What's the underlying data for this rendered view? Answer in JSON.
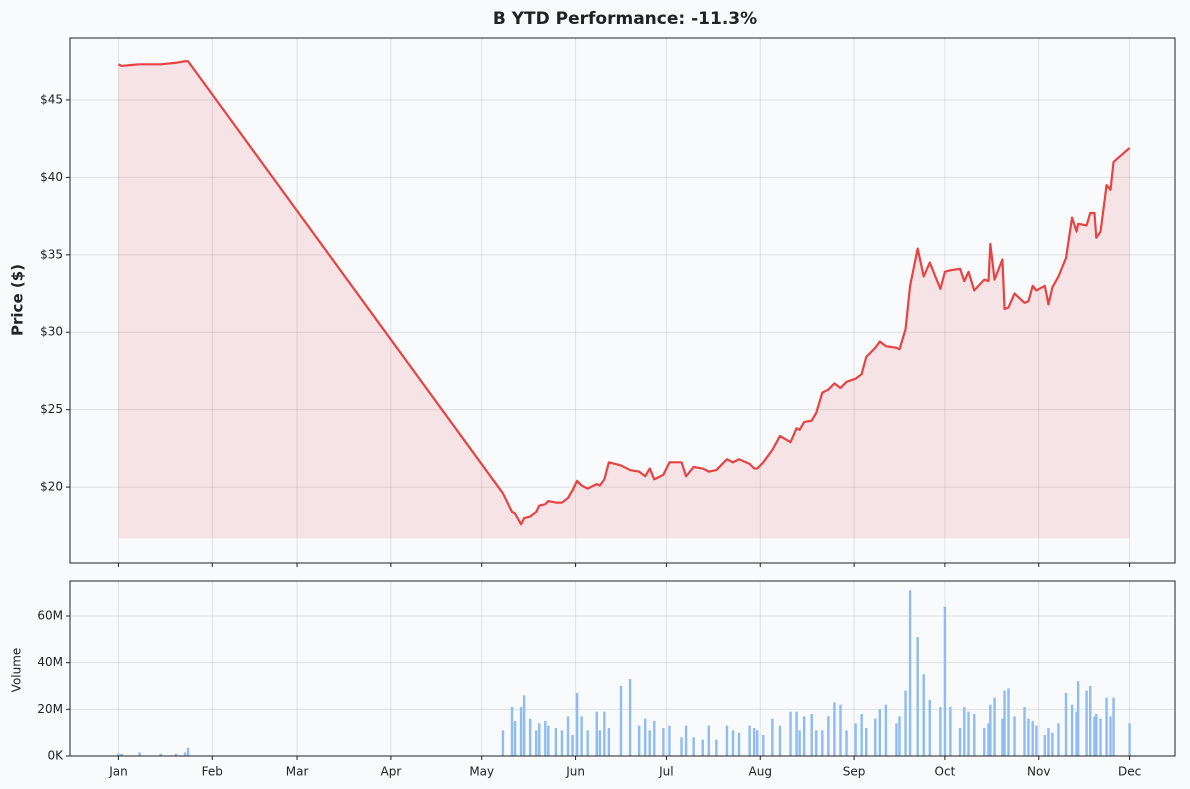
{
  "chart_data": [
    {
      "type": "line",
      "title": "B YTD Performance: -11.3%",
      "y_label": "Price ($)",
      "x": [
        0,
        1,
        7,
        14,
        19,
        22,
        23,
        127,
        130,
        131,
        133,
        134,
        136,
        138,
        139,
        141,
        142,
        144.5,
        146.5,
        148.5,
        150,
        151.5,
        153,
        155,
        158,
        159,
        160.5,
        162,
        166,
        169,
        172,
        174,
        175.5,
        177,
        180,
        182,
        186,
        187.5,
        190,
        193,
        195,
        197.5,
        201,
        203,
        205,
        208.5,
        210,
        211,
        213,
        216,
        218.5,
        222,
        224,
        225,
        226.5,
        229,
        230.5,
        232.5,
        234.5,
        236.5,
        238.5,
        240.5,
        243.5,
        245.5,
        247,
        250,
        251.5,
        253.5,
        257,
        258,
        260,
        261.5,
        264,
        266,
        268,
        271.5,
        273,
        274.8,
        278,
        279.4,
        280.8,
        282.7,
        286,
        287.4,
        288,
        289.4,
        292,
        292.7,
        294,
        296,
        299.3,
        300.6,
        302,
        303.2,
        306,
        307.2,
        308.5,
        310.5,
        313,
        315,
        316.5,
        317,
        319.8,
        321,
        322.4,
        323,
        324.4,
        326.4,
        327.7,
        328.7,
        334
      ],
      "series": [
        {
          "name": "Price",
          "color": "#e84343",
          "values": [
            47.3,
            47.2,
            47.3,
            47.3,
            47.4,
            47.5,
            47.5,
            19.6,
            18.4,
            18.3,
            17.6,
            18.0,
            18.1,
            18.4,
            18.8,
            18.9,
            19.1,
            19.0,
            19.0,
            19.3,
            19.8,
            20.4,
            20.1,
            19.9,
            20.2,
            20.1,
            20.5,
            21.6,
            21.4,
            21.1,
            21.0,
            20.7,
            21.2,
            20.5,
            20.8,
            21.6,
            21.6,
            20.7,
            21.3,
            21.2,
            21.0,
            21.1,
            21.8,
            21.6,
            21.8,
            21.5,
            21.2,
            21.2,
            21.6,
            22.4,
            23.3,
            22.9,
            23.8,
            23.7,
            24.2,
            24.3,
            24.8,
            26.1,
            26.3,
            26.7,
            26.4,
            26.8,
            27.0,
            27.3,
            28.4,
            29.0,
            29.4,
            29.1,
            29.0,
            28.9,
            30.2,
            33.0,
            35.4,
            33.6,
            34.5,
            32.8,
            33.9,
            34.0,
            34.1,
            33.3,
            33.9,
            32.7,
            33.4,
            33.3,
            35.7,
            33.4,
            34.7,
            31.5,
            31.6,
            32.5,
            31.9,
            32.0,
            33.0,
            32.7,
            33.0,
            31.8,
            32.9,
            33.6,
            34.8,
            37.4,
            36.5,
            37.0,
            36.9,
            37.7,
            37.7,
            36.1,
            36.5,
            39.5,
            39.2,
            41.0,
            41.9
          ]
        }
      ],
      "xlim": [
        -16,
        349
      ],
      "xticks": [
        {
          "value": 0,
          "label": "Jan"
        },
        {
          "value": 31,
          "label": "Feb"
        },
        {
          "value": 59,
          "label": "Mar"
        },
        {
          "value": 90,
          "label": "Apr"
        },
        {
          "value": 120,
          "label": "May"
        },
        {
          "value": 151,
          "label": "Jun"
        },
        {
          "value": 181,
          "label": "Jul"
        },
        {
          "value": 212,
          "label": "Aug"
        },
        {
          "value": 243,
          "label": "Sep"
        },
        {
          "value": 273,
          "label": "Oct"
        },
        {
          "value": 304,
          "label": "Nov"
        },
        {
          "value": 334,
          "label": "Dec"
        }
      ],
      "ylim": [
        15.1,
        49.0
      ],
      "yticks": [
        {
          "value": 20,
          "label": "$20"
        },
        {
          "value": 25,
          "label": "$25"
        },
        {
          "value": 30,
          "label": "$30"
        },
        {
          "value": 35,
          "label": "$35"
        },
        {
          "value": 40,
          "label": "$40"
        },
        {
          "value": 45,
          "label": "$45"
        }
      ],
      "grid": true
    },
    {
      "type": "bar",
      "y_label": "Volume",
      "x": [
        0,
        1,
        7,
        14,
        19,
        22,
        23,
        127,
        130,
        131,
        133,
        134,
        136,
        138,
        139,
        141,
        142,
        144.5,
        146.5,
        148.5,
        150,
        151.5,
        153,
        155,
        158,
        159,
        160.5,
        162,
        166,
        169,
        172,
        174,
        175.5,
        177,
        180,
        182,
        186,
        187.5,
        190,
        193,
        195,
        197.5,
        201,
        203,
        205,
        208.5,
        210,
        211,
        213,
        216,
        218.5,
        222,
        224,
        225,
        226.5,
        229,
        230.5,
        232.5,
        234.5,
        236.5,
        238.5,
        240.5,
        243.5,
        245.5,
        247,
        250,
        251.5,
        253.5,
        257,
        258,
        260,
        261.5,
        264,
        266,
        268,
        271.5,
        273,
        274.8,
        278,
        279.4,
        280.8,
        282.7,
        286,
        287.4,
        288,
        289.4,
        292,
        292.7,
        294,
        296,
        299.3,
        300.6,
        302,
        303.2,
        306,
        307.2,
        308.5,
        310.5,
        313,
        315,
        316.5,
        317,
        319.8,
        321,
        322.4,
        323,
        324.4,
        326.4,
        327.7,
        328.7,
        334
      ],
      "series": [
        {
          "name": "Volume",
          "color": "#8fbcf3",
          "values": [
            1000000,
            1000000,
            1500000,
            1000000,
            1000000,
            1500000,
            3500000,
            11000000,
            21000000,
            15000000,
            21000000,
            26000000,
            16000000,
            11000000,
            14000000,
            15000000,
            13000000,
            12000000,
            11000000,
            17000000,
            9000000,
            27000000,
            17000000,
            11000000,
            19000000,
            11000000,
            19000000,
            12000000,
            30000000,
            33000000,
            13000000,
            16000000,
            11000000,
            15000000,
            12000000,
            13000000,
            8000000,
            13000000,
            8000000,
            7000000,
            13000000,
            7000000,
            13000000,
            11000000,
            10000000,
            13000000,
            12000000,
            11000000,
            9000000,
            16000000,
            13000000,
            19000000,
            19000000,
            11000000,
            17000000,
            18000000,
            11000000,
            11000000,
            17000000,
            23000000,
            22000000,
            11000000,
            14000000,
            18000000,
            12000000,
            16000000,
            20000000,
            22000000,
            14000000,
            17000000,
            28000000,
            71000000,
            51000000,
            35000000,
            24000000,
            21000000,
            64000000,
            21000000,
            12000000,
            21000000,
            19000000,
            18000000,
            12000000,
            14000000,
            22000000,
            25000000,
            16000000,
            28000000,
            29000000,
            17000000,
            21000000,
            16000000,
            15000000,
            13000000,
            9000000,
            12000000,
            10000000,
            14000000,
            27000000,
            22000000,
            19000000,
            32000000,
            28000000,
            30000000,
            17000000,
            18000000,
            16000000,
            25000000,
            17000000,
            25000000,
            14000000
          ]
        }
      ],
      "xlim": [
        -16,
        349
      ],
      "xticks": [
        {
          "value": 0,
          "label": "Jan"
        },
        {
          "value": 31,
          "label": "Feb"
        },
        {
          "value": 59,
          "label": "Mar"
        },
        {
          "value": 90,
          "label": "Apr"
        },
        {
          "value": 120,
          "label": "May"
        },
        {
          "value": 151,
          "label": "Jun"
        },
        {
          "value": 181,
          "label": "Jul"
        },
        {
          "value": 212,
          "label": "Aug"
        },
        {
          "value": 243,
          "label": "Sep"
        },
        {
          "value": 273,
          "label": "Oct"
        },
        {
          "value": 304,
          "label": "Nov"
        },
        {
          "value": 334,
          "label": "Dec"
        }
      ],
      "ylim": [
        0,
        75000000
      ],
      "yticks": [
        {
          "value": 0,
          "label": "0K"
        },
        {
          "value": 20000000,
          "label": "20M"
        },
        {
          "value": 40000000,
          "label": "40M"
        },
        {
          "value": 60000000,
          "label": "60M"
        }
      ],
      "grid": true
    }
  ]
}
